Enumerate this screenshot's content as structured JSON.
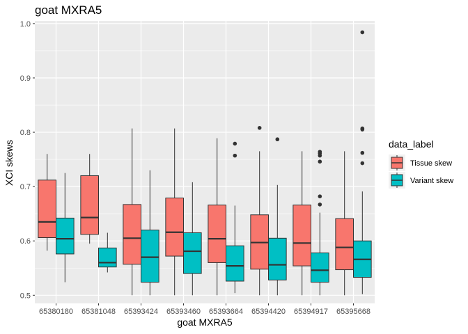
{
  "chart_data": {
    "type": "boxplot",
    "title": "goat MXRA5",
    "xlabel": "goat MXRA5",
    "ylabel": "XCI skews",
    "ylim": [
      0.485,
      1.005
    ],
    "yticks": [
      0.5,
      0.6,
      0.7,
      0.8,
      0.9,
      1.0
    ],
    "ytick_labels": [
      "0.5",
      "0.6",
      "0.7",
      "0.8",
      "0.9",
      "1.0"
    ],
    "grid": true,
    "legend": {
      "title": "data_label",
      "position": "right"
    },
    "categories": [
      "65380180",
      "65381048",
      "65393424",
      "65393460",
      "65393664",
      "65394420",
      "65394917",
      "65395668"
    ],
    "series": [
      {
        "name": "Tissue skew",
        "color": "#F8766D",
        "boxes": [
          {
            "lower": 0.582,
            "q1": 0.606,
            "median": 0.635,
            "q3": 0.712,
            "upper": 0.76,
            "outliers": []
          },
          {
            "lower": 0.595,
            "q1": 0.612,
            "median": 0.643,
            "q3": 0.72,
            "upper": 0.76,
            "outliers": []
          },
          {
            "lower": 0.5,
            "q1": 0.557,
            "median": 0.605,
            "q3": 0.667,
            "upper": 0.807,
            "outliers": []
          },
          {
            "lower": 0.5,
            "q1": 0.572,
            "median": 0.616,
            "q3": 0.679,
            "upper": 0.807,
            "outliers": []
          },
          {
            "lower": 0.5,
            "q1": 0.56,
            "median": 0.604,
            "q3": 0.666,
            "upper": 0.789,
            "outliers": []
          },
          {
            "lower": 0.5,
            "q1": 0.548,
            "median": 0.597,
            "q3": 0.648,
            "upper": 0.765,
            "outliers": [
              0.808
            ]
          },
          {
            "lower": 0.5,
            "q1": 0.554,
            "median": 0.596,
            "q3": 0.666,
            "upper": 0.765,
            "outliers": []
          },
          {
            "lower": 0.5,
            "q1": 0.547,
            "median": 0.588,
            "q3": 0.641,
            "upper": 0.765,
            "outliers": []
          }
        ]
      },
      {
        "name": "Variant skew",
        "color": "#00BFC4",
        "boxes": [
          {
            "lower": 0.524,
            "q1": 0.576,
            "median": 0.604,
            "q3": 0.642,
            "upper": 0.725,
            "outliers": []
          },
          {
            "lower": 0.542,
            "q1": 0.552,
            "median": 0.56,
            "q3": 0.587,
            "upper": 0.615,
            "outliers": []
          },
          {
            "lower": 0.5,
            "q1": 0.524,
            "median": 0.57,
            "q3": 0.62,
            "upper": 0.73,
            "outliers": []
          },
          {
            "lower": 0.5,
            "q1": 0.54,
            "median": 0.581,
            "q3": 0.615,
            "upper": 0.708,
            "outliers": []
          },
          {
            "lower": 0.504,
            "q1": 0.526,
            "median": 0.554,
            "q3": 0.591,
            "upper": 0.665,
            "outliers": [
              0.757,
              0.779
            ]
          },
          {
            "lower": 0.5,
            "q1": 0.528,
            "median": 0.556,
            "q3": 0.605,
            "upper": 0.703,
            "outliers": [
              0.787
            ]
          },
          {
            "lower": 0.5,
            "q1": 0.524,
            "median": 0.546,
            "q3": 0.578,
            "upper": 0.652,
            "outliers": [
              0.667,
              0.682,
              0.746,
              0.757,
              0.761,
              0.764
            ]
          },
          {
            "lower": 0.502,
            "q1": 0.533,
            "median": 0.566,
            "q3": 0.6,
            "upper": 0.691,
            "outliers": [
              0.743,
              0.762,
              0.805,
              0.807,
              0.984
            ]
          }
        ]
      }
    ]
  }
}
